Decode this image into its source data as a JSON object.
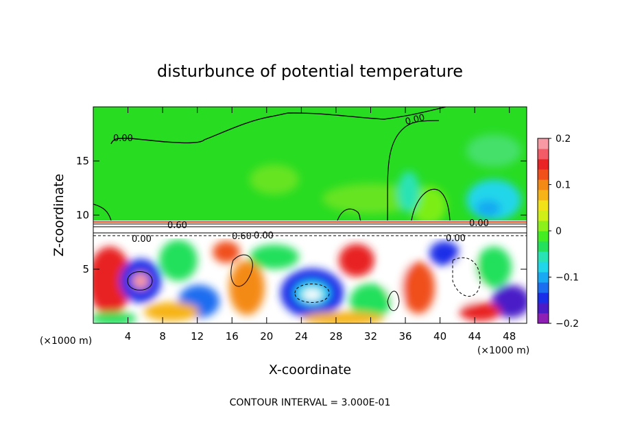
{
  "chart_data": {
    "type": "heatmap",
    "title": "disturbunce of potential temperature",
    "xlabel": "X-coordinate",
    "ylabel": "Z-coordinate",
    "x_unit": "(×1000 m)",
    "z_unit": "(×1000 m)",
    "xlim": [
      0,
      50
    ],
    "ylim": [
      0,
      20
    ],
    "x_ticks": [
      4,
      8,
      12,
      16,
      20,
      24,
      28,
      32,
      36,
      40,
      44,
      48
    ],
    "y_ticks": [
      5,
      10,
      15
    ],
    "colorbar": {
      "range": [
        -0.2,
        0.2
      ],
      "tick_values": [
        0.2,
        0.1,
        0,
        -0.1,
        -0.2
      ],
      "tick_labels": [
        "0.2",
        "0.1",
        "0",
        "−0.1",
        "−0.2"
      ],
      "colors": [
        "#8e1fb4",
        "#4a1cc8",
        "#1a2ee8",
        "#1c6df0",
        "#19a8f2",
        "#22d6ea",
        "#2ae3b4",
        "#24e05c",
        "#44ec22",
        "#8cf01a",
        "#d0ee18",
        "#f2e21a",
        "#f6b418",
        "#f48a16",
        "#f0501a",
        "#e82424",
        "#f25c66",
        "#f79aa4"
      ]
    },
    "contour_labels": [
      "0.00",
      "0.00",
      "0.60",
      "0.60",
      "0.00",
      "0.00",
      "0.00",
      "0.00"
    ],
    "contour_interval": "CONTOUR INTERVAL = 3.000E-01"
  }
}
